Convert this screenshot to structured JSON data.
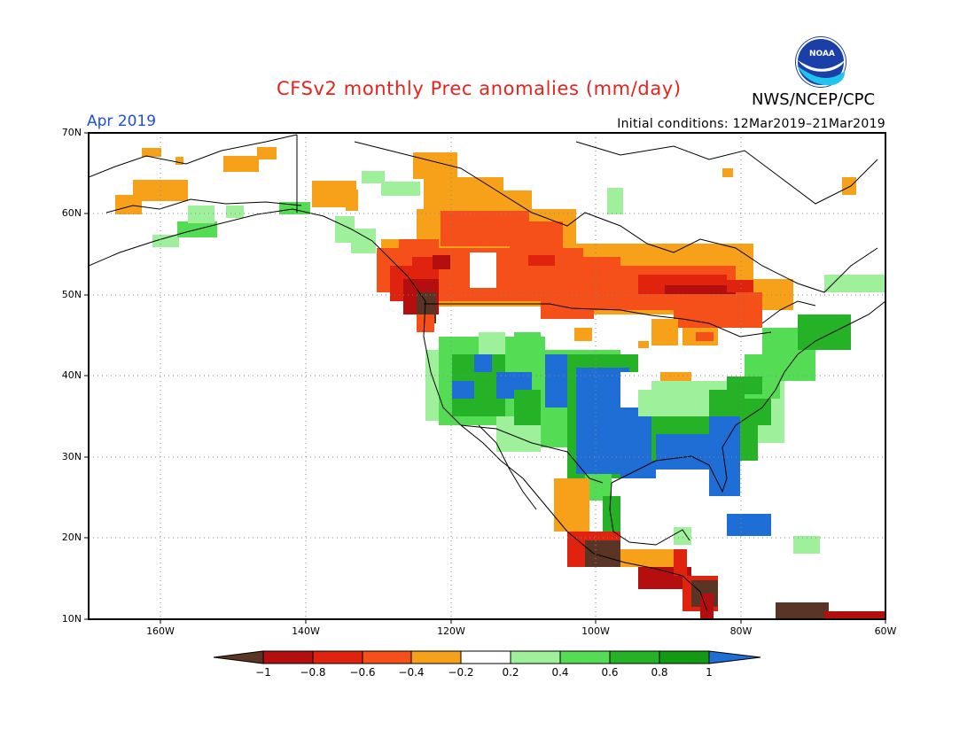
{
  "header": {
    "title": "CFSv2 monthly Prec anomalies (mm/day)",
    "organization": "NWS/NCEP/CPC",
    "valid_month": "Apr 2019",
    "initial_conditions": "Initial conditions: 12Mar2019–21Mar2019",
    "logo_text": "NOAA"
  },
  "map": {
    "lon_range": [
      -170,
      -60
    ],
    "lat_range": [
      10,
      70
    ],
    "lat_labels": [
      "70N",
      "60N",
      "50N",
      "40N",
      "30N",
      "20N",
      "10N"
    ],
    "lon_labels": [
      "160W",
      "140W",
      "120W",
      "100W",
      "80W",
      "60W"
    ]
  },
  "colorbar": {
    "tick_labels": [
      "−1",
      "−0.8",
      "−0.6",
      "−0.4",
      "−0.2",
      "0.2",
      "0.4",
      "0.6",
      "0.8",
      "1"
    ],
    "colors": {
      "below_minus1": "#5a3526",
      "m1_m08": "#b50e0e",
      "m08_m06": "#e0230e",
      "m06_m04": "#f5501a",
      "m04_m02": "#f7a11a",
      "m02_p02": "#ffffff",
      "p02_p04": "#9ef09a",
      "p04_p06": "#55dc55",
      "p06_p08": "#26b226",
      "p08_p1": "#129a12",
      "above_1": "#1f6ed6"
    }
  }
}
